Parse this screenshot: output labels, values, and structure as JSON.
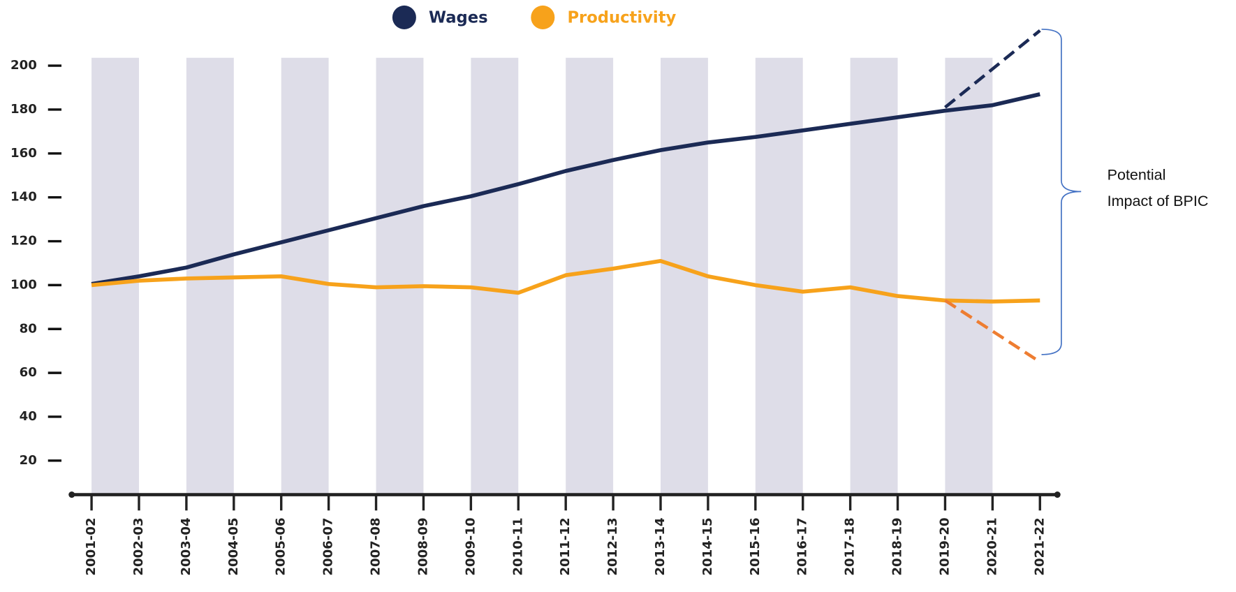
{
  "chart_data": {
    "type": "line",
    "categories": [
      "2001-02",
      "2002-03",
      "2003-04",
      "2004-05",
      "2005-06",
      "2006-07",
      "2007-08",
      "2008-09",
      "2009-10",
      "2010-11",
      "2011-12",
      "2012-13",
      "2013-14",
      "2014-15",
      "2015-16",
      "2016-17",
      "2017-18",
      "2018-19",
      "2019-20",
      "2020-21",
      "2021-22"
    ],
    "series": [
      {
        "name": "Wages",
        "color": "#1b2a55",
        "values": [
          100.5,
          104,
          108,
          114,
          119.5,
          125,
          130.5,
          136,
          140.5,
          146,
          152,
          157,
          161.5,
          165,
          167.5,
          170.5,
          173.5,
          176.5,
          179.5,
          182,
          187
        ]
      },
      {
        "name": "Productivity",
        "color": "#f7a21b",
        "values": [
          100,
          102,
          103,
          103.5,
          104,
          100.5,
          99,
          99.5,
          99,
          96.5,
          104.5,
          107.5,
          111,
          104,
          100,
          97,
          99,
          95,
          93,
          92.5,
          93
        ]
      }
    ],
    "projections": [
      {
        "color": "#1b2a55",
        "values": [
          null,
          null,
          null,
          null,
          null,
          null,
          null,
          null,
          null,
          null,
          null,
          null,
          null,
          null,
          null,
          null,
          null,
          null,
          181,
          null,
          216
        ]
      },
      {
        "color": "#ee7d31",
        "values": [
          null,
          null,
          null,
          null,
          null,
          null,
          null,
          null,
          null,
          null,
          null,
          null,
          null,
          null,
          null,
          null,
          null,
          null,
          93,
          null,
          65
        ]
      }
    ],
    "ylim": [
      4.5,
      203.6
    ],
    "yticks": [
      20,
      40,
      60,
      80,
      100,
      120,
      140,
      160,
      180,
      200
    ],
    "band_color": "#dedde8",
    "annotation": [
      "Potential",
      "Impact of BPIC"
    ]
  }
}
